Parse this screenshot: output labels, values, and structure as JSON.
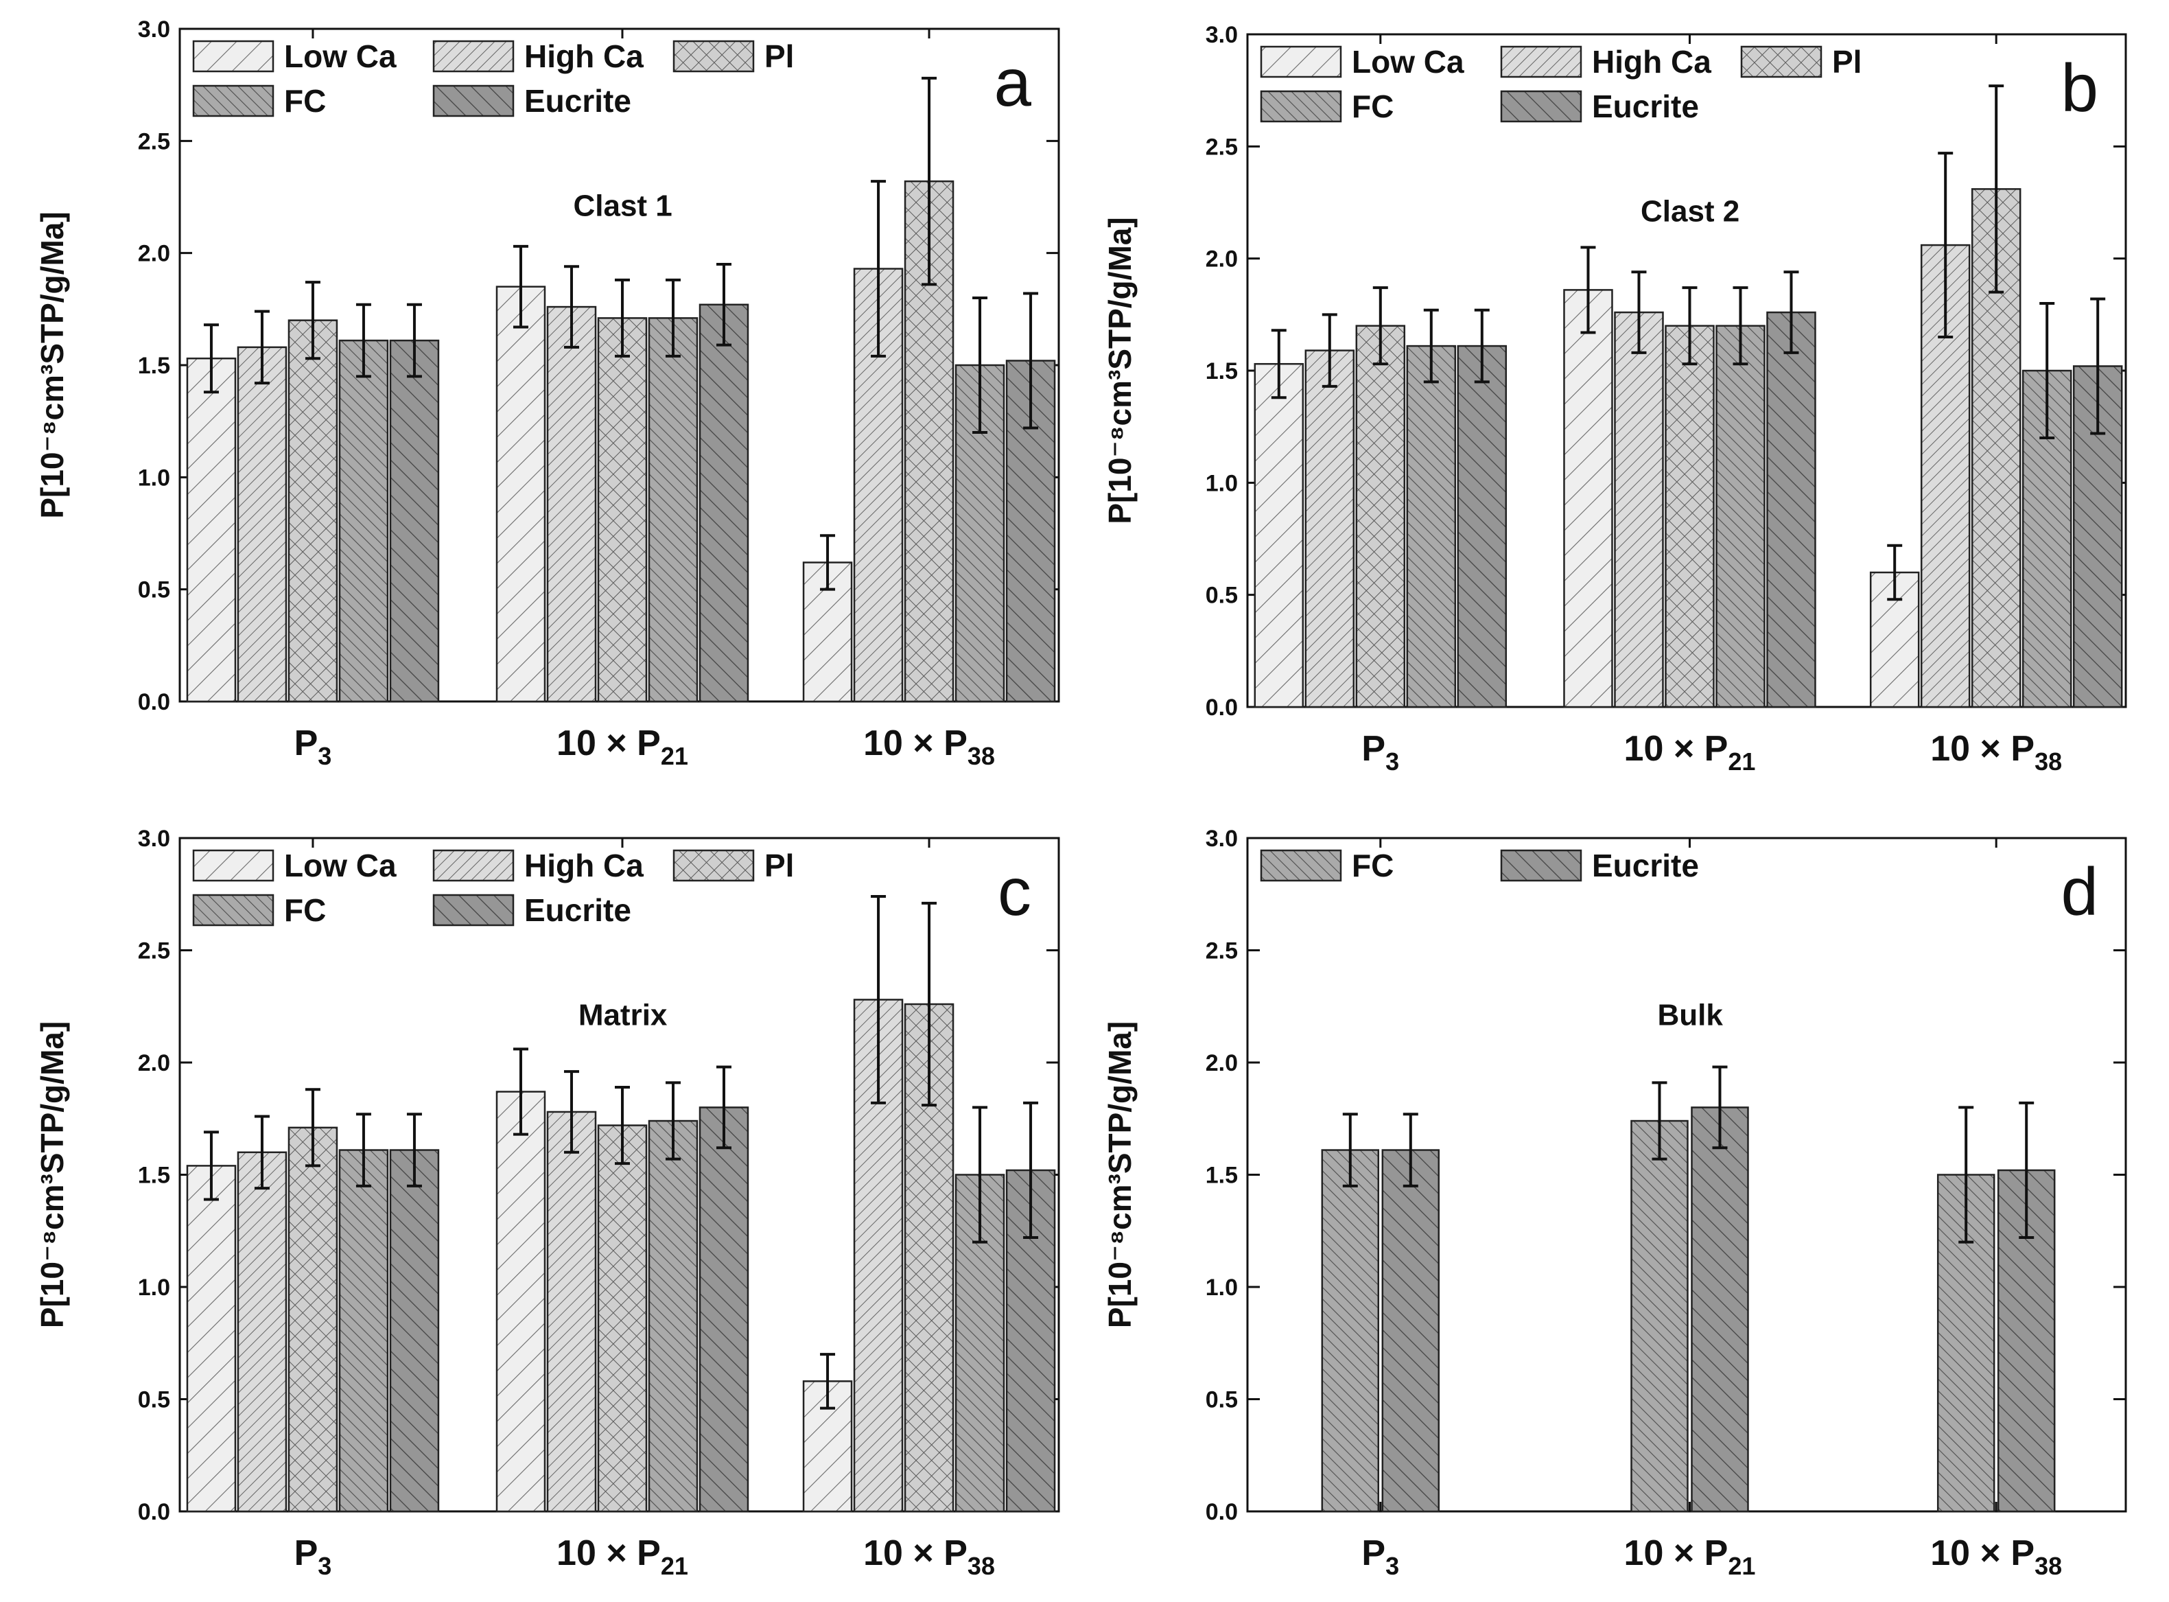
{
  "figure": {
    "y_axis_label": "P[10⁻⁸cm³STP/g/Ma]",
    "y_ticks": [
      "0.0",
      "0.5",
      "1.0",
      "1.5",
      "2.0",
      "2.5",
      "3.0"
    ],
    "categories": [
      {
        "prefix": "",
        "base": "P",
        "sub": "3"
      },
      {
        "prefix": "10 × ",
        "base": "P",
        "sub": "21"
      },
      {
        "prefix": "10 × ",
        "base": "P",
        "sub": "38"
      }
    ]
  },
  "styles": {
    "Low Ca": {
      "fill": "#efefef",
      "hatch": "diag-up-sparse"
    },
    "High Ca": {
      "fill": "#dcdcdc",
      "hatch": "diag-up-dense"
    },
    "Pl": {
      "fill": "#cfcfcf",
      "hatch": "crosshatch"
    },
    "FC": {
      "fill": "#aaaaaa",
      "hatch": "diag-down-dense"
    },
    "Eucrite": {
      "fill": "#969696",
      "hatch": "diag-down-sparse"
    }
  },
  "chart_data": [
    {
      "type": "bar",
      "panel": "a",
      "title": "Clast 1",
      "ylabel": "P[10⁻⁸cm³STP/g/Ma]",
      "ylim": [
        0,
        3.0
      ],
      "categories": [
        "P3",
        "10 × P21",
        "10 × P38"
      ],
      "legend": [
        "Low Ca",
        "High Ca",
        "Pl",
        "FC",
        "Eucrite"
      ],
      "series": [
        {
          "name": "Low Ca",
          "values": [
            1.53,
            1.85,
            0.62
          ],
          "errors": [
            0.15,
            0.18,
            0.12
          ]
        },
        {
          "name": "High Ca",
          "values": [
            1.58,
            1.76,
            1.93
          ],
          "errors": [
            0.16,
            0.18,
            0.39
          ]
        },
        {
          "name": "Pl",
          "values": [
            1.7,
            1.71,
            2.32
          ],
          "errors": [
            0.17,
            0.17,
            0.46
          ]
        },
        {
          "name": "FC",
          "values": [
            1.61,
            1.71,
            1.5
          ],
          "errors": [
            0.16,
            0.17,
            0.3
          ]
        },
        {
          "name": "Eucrite",
          "values": [
            1.61,
            1.77,
            1.52
          ],
          "errors": [
            0.16,
            0.18,
            0.3
          ]
        }
      ]
    },
    {
      "type": "bar",
      "panel": "b",
      "title": "Clast 2",
      "ylabel": "P[10⁻⁸cm³STP/g/Ma]",
      "ylim": [
        0,
        3.0
      ],
      "categories": [
        "P3",
        "10 × P21",
        "10 × P38"
      ],
      "legend": [
        "Low Ca",
        "High Ca",
        "Pl",
        "FC",
        "Eucrite"
      ],
      "series": [
        {
          "name": "Low Ca",
          "values": [
            1.53,
            1.86,
            0.6
          ],
          "errors": [
            0.15,
            0.19,
            0.12
          ]
        },
        {
          "name": "High Ca",
          "values": [
            1.59,
            1.76,
            2.06
          ],
          "errors": [
            0.16,
            0.18,
            0.41
          ]
        },
        {
          "name": "Pl",
          "values": [
            1.7,
            1.7,
            2.31
          ],
          "errors": [
            0.17,
            0.17,
            0.46
          ]
        },
        {
          "name": "FC",
          "values": [
            1.61,
            1.7,
            1.5
          ],
          "errors": [
            0.16,
            0.17,
            0.3
          ]
        },
        {
          "name": "Eucrite",
          "values": [
            1.61,
            1.76,
            1.52
          ],
          "errors": [
            0.16,
            0.18,
            0.3
          ]
        }
      ]
    },
    {
      "type": "bar",
      "panel": "c",
      "title": "Matrix",
      "ylabel": "P[10⁻⁸cm³STP/g/Ma]",
      "ylim": [
        0,
        3.0
      ],
      "categories": [
        "P3",
        "10 × P21",
        "10 × P38"
      ],
      "legend": [
        "Low Ca",
        "High Ca",
        "Pl",
        "FC",
        "Eucrite"
      ],
      "series": [
        {
          "name": "Low Ca",
          "values": [
            1.54,
            1.87,
            0.58
          ],
          "errors": [
            0.15,
            0.19,
            0.12
          ]
        },
        {
          "name": "High Ca",
          "values": [
            1.6,
            1.78,
            2.28
          ],
          "errors": [
            0.16,
            0.18,
            0.46
          ]
        },
        {
          "name": "Pl",
          "values": [
            1.71,
            1.72,
            2.26
          ],
          "errors": [
            0.17,
            0.17,
            0.45
          ]
        },
        {
          "name": "FC",
          "values": [
            1.61,
            1.74,
            1.5
          ],
          "errors": [
            0.16,
            0.17,
            0.3
          ]
        },
        {
          "name": "Eucrite",
          "values": [
            1.61,
            1.8,
            1.52
          ],
          "errors": [
            0.16,
            0.18,
            0.3
          ]
        }
      ]
    },
    {
      "type": "bar",
      "panel": "d",
      "title": "Bulk",
      "ylabel": "P[10⁻⁸cm³STP/g/Ma]",
      "ylim": [
        0,
        3.0
      ],
      "categories": [
        "P3",
        "10 × P21",
        "10 × P38"
      ],
      "legend": [
        "FC",
        "Eucrite"
      ],
      "series": [
        {
          "name": "FC",
          "values": [
            1.61,
            1.74,
            1.5
          ],
          "errors": [
            0.16,
            0.17,
            0.3
          ]
        },
        {
          "name": "Eucrite",
          "values": [
            1.61,
            1.8,
            1.52
          ],
          "errors": [
            0.16,
            0.18,
            0.3
          ]
        }
      ]
    }
  ]
}
